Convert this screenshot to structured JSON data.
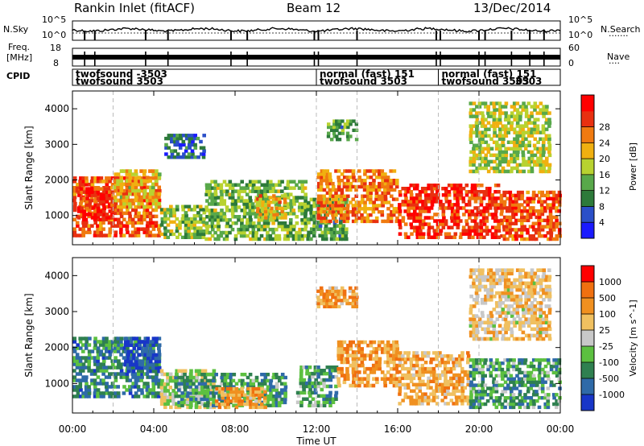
{
  "header": {
    "station": "Rankin Inlet (fitACF)",
    "beam": "Beam 12",
    "date": "13/Dec/2014"
  },
  "strip_labels": {
    "nsky": "N.Sky",
    "nsky_hi": "10^5",
    "nsky_lo": "10^0",
    "nsearch": "N.Search",
    "nsearch_hi": "10^5",
    "nsearch_lo": "10^0",
    "freq_line1": "Freq.",
    "freq_line2": "[MHz]",
    "freq_hi": "18",
    "freq_lo": "8",
    "nave": "Nave",
    "nave_hi": "60",
    "nave_lo": "0",
    "cpid": "CPID"
  },
  "cpid_labels": [
    {
      "hour": 0.0,
      "row": 1,
      "text": "twofsound -3503"
    },
    {
      "hour": 0.0,
      "row": 2,
      "text": "twofsound 3503"
    },
    {
      "hour": 12.0,
      "row": 1,
      "text": "normal (fast) 151"
    },
    {
      "hour": 12.0,
      "row": 2,
      "text": "twofsound 3503"
    },
    {
      "hour": 18.0,
      "row": 1,
      "text": "normal (fast) 151"
    },
    {
      "hour": 18.0,
      "row": 2,
      "text": "twofsound 3503"
    },
    {
      "hour": 22.0,
      "row": 2,
      "text": "3503"
    }
  ],
  "chart_data": [
    {
      "type": "heatmap",
      "title": "Power",
      "xlabel": "Time UT",
      "ylabel": "Slant Range [km]",
      "xlim": [
        0,
        24
      ],
      "ylim": [
        180,
        4500
      ],
      "x_ticks": [
        "00:00",
        "04:00",
        "08:00",
        "12:00",
        "16:00",
        "20:00",
        "00:00"
      ],
      "y_ticks": [
        1000,
        2000,
        3000,
        4000
      ],
      "colorbar": {
        "label": "Power [dB]",
        "ticks": [
          4,
          8,
          12,
          16,
          20,
          24,
          28
        ],
        "colors": [
          "#1a1aff",
          "#2b4fc8",
          "#2d7a3a",
          "#58a84a",
          "#b8d230",
          "#f0b010",
          "#f07a10",
          "#e83010",
          "#ff0000"
        ]
      },
      "regions": [
        {
          "t0": 0.0,
          "t1": 4.3,
          "r0": 400,
          "r1": 2100,
          "level": 0.82
        },
        {
          "t0": 0.2,
          "t1": 2.0,
          "r0": 900,
          "r1": 1800,
          "level": 0.93
        },
        {
          "t0": 2.0,
          "t1": 4.3,
          "r0": 1200,
          "r1": 2300,
          "level": 0.6
        },
        {
          "t0": 4.3,
          "t1": 6.5,
          "r0": 350,
          "r1": 1300,
          "level": 0.42
        },
        {
          "t0": 6.5,
          "t1": 11.5,
          "r0": 300,
          "r1": 2000,
          "level": 0.4
        },
        {
          "t0": 9.0,
          "t1": 10.5,
          "r0": 900,
          "r1": 1600,
          "level": 0.65
        },
        {
          "t0": 11.5,
          "t1": 13.5,
          "r0": 300,
          "r1": 1500,
          "level": 0.35
        },
        {
          "t0": 12.0,
          "t1": 16.0,
          "r0": 800,
          "r1": 2300,
          "level": 0.75
        },
        {
          "t0": 16.0,
          "t1": 21.0,
          "r0": 350,
          "r1": 1900,
          "level": 0.9
        },
        {
          "t0": 21.0,
          "t1": 24.0,
          "r0": 300,
          "r1": 1700,
          "level": 0.82
        },
        {
          "t0": 4.5,
          "t1": 6.5,
          "r0": 2600,
          "r1": 3300,
          "level": 0.2
        },
        {
          "t0": 12.5,
          "t1": 14.0,
          "r0": 3100,
          "r1": 3700,
          "level": 0.35
        },
        {
          "t0": 19.5,
          "t1": 23.5,
          "r0": 2200,
          "r1": 4200,
          "level": 0.5
        }
      ]
    },
    {
      "type": "heatmap",
      "title": "Velocity",
      "xlabel": "Time UT",
      "ylabel": "Slant Range [km]",
      "xlim": [
        0,
        24
      ],
      "ylim": [
        180,
        4500
      ],
      "x_ticks": [
        "00:00",
        "04:00",
        "08:00",
        "12:00",
        "16:00",
        "20:00",
        "00:00"
      ],
      "y_ticks": [
        1000,
        2000,
        3000,
        4000
      ],
      "colorbar": {
        "label": "Velocity [m s^-1]",
        "ticks": [
          1000,
          500,
          100,
          25,
          -25,
          -100,
          -500,
          -1000
        ],
        "colors": [
          "#1836c8",
          "#2f6aa8",
          "#2f8050",
          "#5cc040",
          "#c8c8c8",
          "#f0c060",
          "#f09020",
          "#f07010",
          "#ff0000"
        ]
      },
      "regions": [
        {
          "t0": 0.0,
          "t1": 4.3,
          "r0": 600,
          "r1": 2300,
          "level": 0.22
        },
        {
          "t0": 2.5,
          "t1": 4.3,
          "r0": 1300,
          "r1": 2300,
          "level": 0.05
        },
        {
          "t0": 4.3,
          "t1": 7.0,
          "r0": 300,
          "r1": 1400,
          "level": 0.5
        },
        {
          "t0": 5.0,
          "t1": 10.5,
          "r0": 350,
          "r1": 1300,
          "level": 0.28
        },
        {
          "t0": 7.0,
          "t1": 9.5,
          "r0": 300,
          "r1": 900,
          "level": 0.72
        },
        {
          "t0": 11.0,
          "t1": 13.0,
          "r0": 350,
          "r1": 1500,
          "level": 0.3
        },
        {
          "t0": 13.0,
          "t1": 16.0,
          "r0": 900,
          "r1": 2200,
          "level": 0.75
        },
        {
          "t0": 16.0,
          "t1": 19.5,
          "r0": 400,
          "r1": 1900,
          "level": 0.7
        },
        {
          "t0": 19.5,
          "t1": 24.0,
          "r0": 300,
          "r1": 1700,
          "level": 0.3
        },
        {
          "t0": 12.0,
          "t1": 14.0,
          "r0": 3100,
          "r1": 3700,
          "level": 0.72
        },
        {
          "t0": 19.5,
          "t1": 23.5,
          "r0": 2200,
          "r1": 4200,
          "level": 0.6
        }
      ]
    }
  ]
}
